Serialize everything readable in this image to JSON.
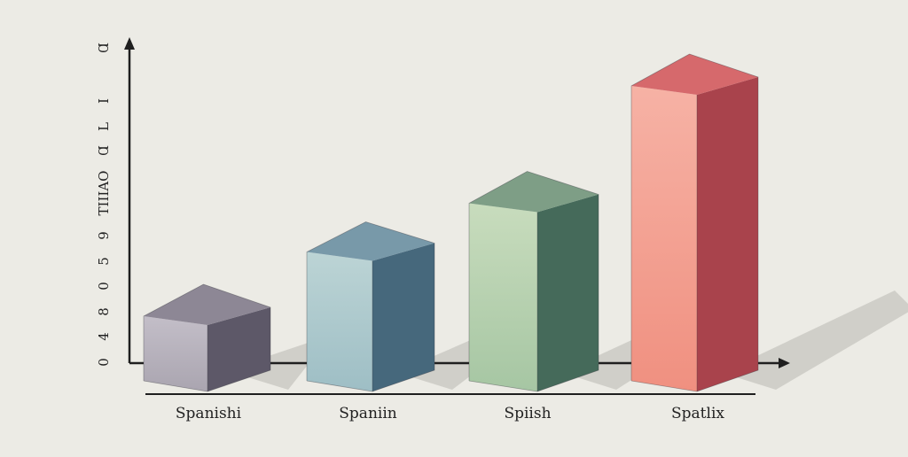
{
  "chart_data": {
    "type": "bar",
    "title": "",
    "xlabel": "",
    "ylabel": "",
    "categories": [
      "Spanishi",
      "Spaniin",
      "Spiish",
      "Spatlix"
    ],
    "values": [
      3.4,
      6.3,
      8.5,
      13.8
    ],
    "ylim": [
      0,
      15
    ],
    "yticks": [
      "0",
      "4",
      "8",
      "0",
      "5",
      "9",
      "TΙΙΙΑΟ",
      "Ɑ",
      "L",
      "I",
      "Ɑ"
    ],
    "grid": false,
    "legend": "none",
    "style": "3d-box",
    "colors": [
      {
        "light": "#c3bec8",
        "front": "#aaa5b0",
        "side": "#5d5868",
        "top": "#8d8795"
      },
      {
        "light": "#bcd4d5",
        "front": "#9ebec5",
        "side": "#46687c",
        "top": "#7899a9"
      },
      {
        "light": "#c8dcbd",
        "front": "#a6c6a3",
        "side": "#456a5a",
        "top": "#7e9e86"
      },
      {
        "light": "#f6b2a5",
        "front": "#f09080",
        "side": "#a9434c",
        "top": "#d6696c"
      }
    ],
    "axis_color": "#1f1f1f",
    "shadow_color": "#c9c8c2"
  }
}
